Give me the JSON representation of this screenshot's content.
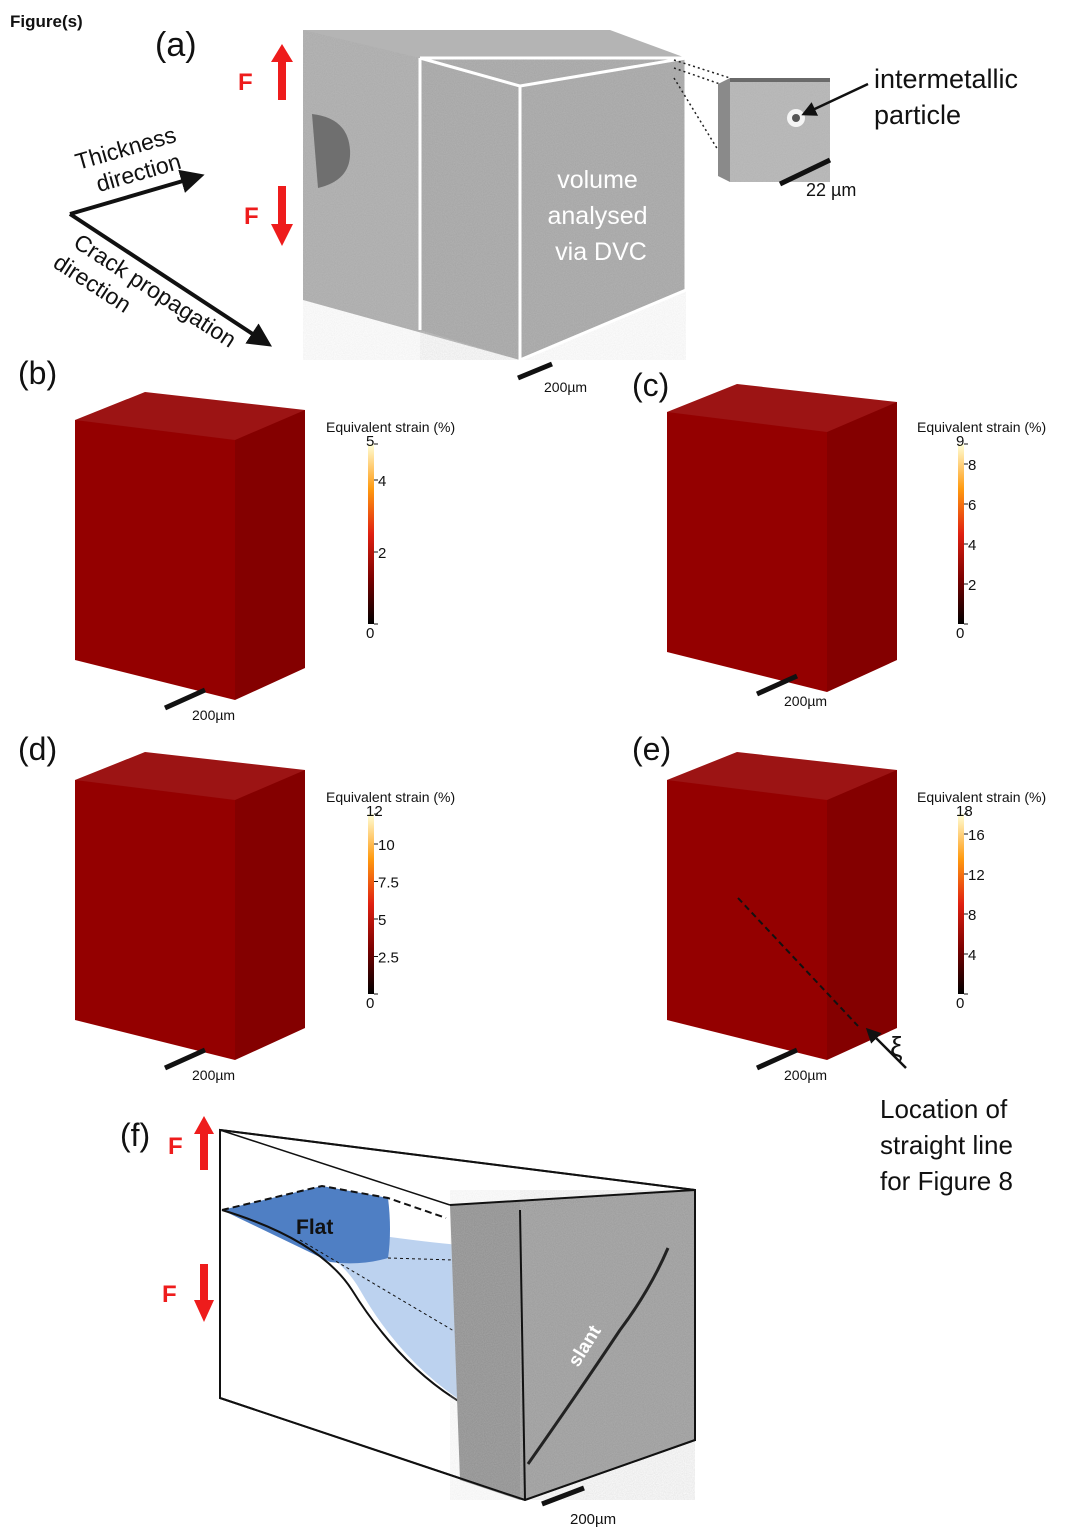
{
  "header": "Figure(s)",
  "panel_a": {
    "label": "(a)",
    "force_label": "F",
    "thickness_direction": [
      "Thickness",
      "direction"
    ],
    "crack_direction": [
      "Crack propagation",
      "direction"
    ],
    "volume_text": [
      "volume",
      "analysed",
      "via DVC"
    ],
    "particle_text": [
      "intermetallic",
      "particle"
    ],
    "particle_scale": "22 µm",
    "scale": "200µm"
  },
  "strain_panels": [
    {
      "label": "(b)",
      "cbar_title": "Equivalent strain (%)",
      "ticks": [
        "5",
        "4",
        "2",
        "0"
      ],
      "tick_values": [
        5,
        4,
        2,
        0
      ],
      "max": 5,
      "scale": "200µm"
    },
    {
      "label": "(c)",
      "cbar_title": "Equivalent strain (%)",
      "ticks": [
        "9",
        "8",
        "6",
        "4",
        "2",
        "0"
      ],
      "tick_values": [
        9,
        8,
        6,
        4,
        2,
        0
      ],
      "max": 9,
      "scale": "200µm"
    },
    {
      "label": "(d)",
      "cbar_title": "Equivalent strain (%)",
      "ticks": [
        "12",
        "10",
        "7.5",
        "5",
        "2.5",
        "0"
      ],
      "tick_values": [
        12,
        10,
        7.5,
        5,
        2.5,
        0
      ],
      "max": 12,
      "scale": "200µm"
    },
    {
      "label": "(e)",
      "cbar_title": "Equivalent strain (%)",
      "ticks": [
        "18",
        "16",
        "12",
        "8",
        "4",
        "0"
      ],
      "tick_values": [
        18,
        16,
        12,
        8,
        4,
        0
      ],
      "max": 18,
      "scale": "200µm"
    }
  ],
  "panel_e_annotation": {
    "symbol": "ξ",
    "text": [
      "Location of",
      "straight line",
      "for Figure 8"
    ]
  },
  "panel_f": {
    "label": "(f)",
    "force_label": "F",
    "flat_label": "Flat",
    "slant_label": "slant",
    "scale": "200µm"
  },
  "colors": {
    "force_arrow": "#ee1c1c",
    "grey_volume": "#a6a6a6",
    "flat_region": "#4f7fc4",
    "slant_region": "#bcd2ef",
    "heat_dark": "#4a0000",
    "heat_mid": "#e8400e",
    "heat_light": "#fff6a0"
  }
}
